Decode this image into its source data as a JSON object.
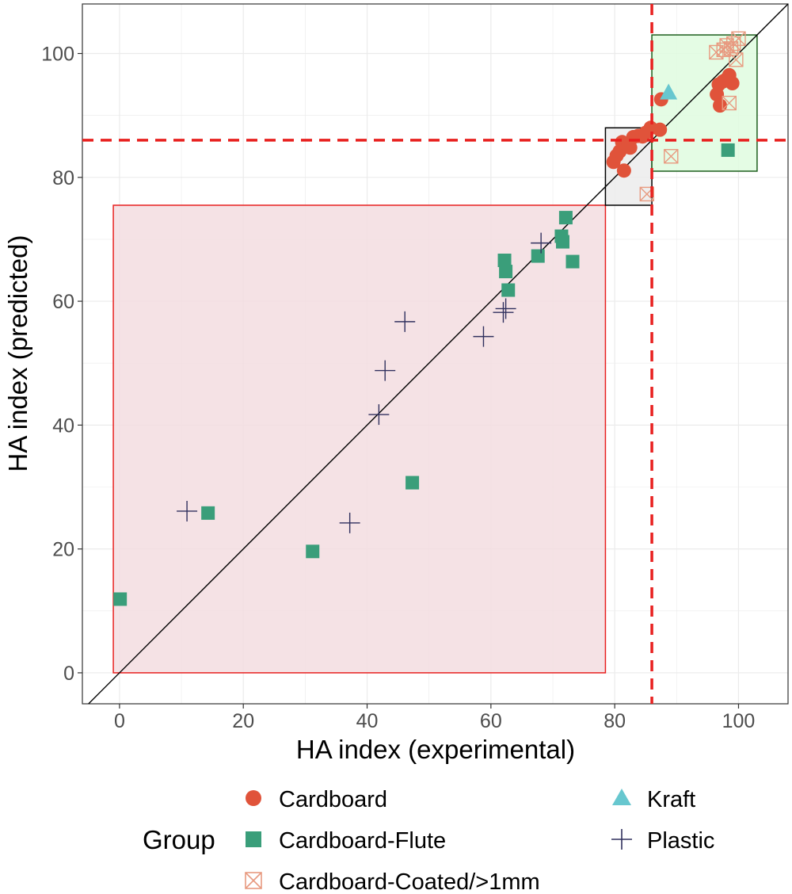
{
  "chart_data": {
    "type": "scatter",
    "title": "",
    "xlabel": "HA index (experimental)",
    "ylabel": "HA index (predicted)",
    "xlim": [
      -6,
      108
    ],
    "ylim": [
      -5,
      108
    ],
    "x_ticks": [
      0,
      20,
      40,
      60,
      80,
      100
    ],
    "y_ticks": [
      0,
      20,
      40,
      60,
      80,
      100
    ],
    "x_tick_labels": [
      "0",
      "20",
      "40",
      "60",
      "80",
      "100"
    ],
    "y_tick_labels": [
      "0",
      "20",
      "40",
      "60",
      "80",
      "100"
    ],
    "grid": true,
    "reference_line": {
      "slope": 1,
      "intercept": 0,
      "color": "#000000"
    },
    "threshold_lines": {
      "x": 86,
      "y": 86,
      "color": "#e8201f",
      "style": "dashed"
    },
    "regions": [
      {
        "x": [
          -1,
          78.5
        ],
        "y": [
          0,
          75.5
        ],
        "fill": "#f3dde1",
        "stroke": "#e8201f"
      },
      {
        "x": [
          78.5,
          86
        ],
        "y": [
          75.5,
          88
        ],
        "fill": "#ececec",
        "stroke": "#000000"
      },
      {
        "x": [
          86,
          103
        ],
        "y": [
          81,
          103
        ],
        "fill": "#dffbdf",
        "stroke": "#1d5e1d"
      }
    ],
    "legend_title": "Group",
    "legend_position": "bottom",
    "series": [
      {
        "name": "Cardboard",
        "marker": "circle",
        "color": "#e0533a",
        "points": [
          [
            79.8,
            82.5
          ],
          [
            80.3,
            83.5
          ],
          [
            80.8,
            84.2
          ],
          [
            81.2,
            85.7
          ],
          [
            81.5,
            81.1
          ],
          [
            82.2,
            85.2
          ],
          [
            82.5,
            84.8
          ],
          [
            83.0,
            86.5
          ],
          [
            83.8,
            86.7
          ],
          [
            84.5,
            86.6
          ],
          [
            85.0,
            87.2
          ],
          [
            85.8,
            88.0
          ],
          [
            87.3,
            87.7
          ],
          [
            87.5,
            92.6
          ],
          [
            96.5,
            93.4
          ],
          [
            96.8,
            95.0
          ],
          [
            97.0,
            91.6
          ],
          [
            97.5,
            95.5
          ],
          [
            98.0,
            95.8
          ],
          [
            98.5,
            96.5
          ],
          [
            99.0,
            95.2
          ]
        ]
      },
      {
        "name": "Cardboard-Flute",
        "marker": "square",
        "color": "#3a9e7a",
        "points": [
          [
            0.1,
            11.9
          ],
          [
            14.3,
            25.8
          ],
          [
            31.2,
            19.6
          ],
          [
            47.3,
            30.7
          ],
          [
            62.2,
            66.6
          ],
          [
            62.4,
            64.8
          ],
          [
            62.8,
            61.8
          ],
          [
            67.6,
            67.3
          ],
          [
            71.4,
            70.5
          ],
          [
            71.6,
            69.6
          ],
          [
            72.1,
            73.5
          ],
          [
            73.2,
            66.4
          ],
          [
            98.3,
            84.4
          ]
        ]
      },
      {
        "name": "Cardboard-Coated/>1mm",
        "marker": "boxed-x",
        "color": "#e89a80",
        "points": [
          [
            85.2,
            77.3
          ],
          [
            89.1,
            83.4
          ],
          [
            96.4,
            100.2
          ],
          [
            97.6,
            100.6
          ],
          [
            98.1,
            101.3
          ],
          [
            98.5,
            92.0
          ],
          [
            98.8,
            100.8
          ],
          [
            99.2,
            101.6
          ],
          [
            99.6,
            99.0
          ],
          [
            100.0,
            102.4
          ]
        ]
      },
      {
        "name": "Kraft",
        "marker": "triangle",
        "color": "#67c7cf",
        "points": [
          [
            88.7,
            93.6
          ]
        ]
      },
      {
        "name": "Plastic",
        "marker": "plus",
        "color": "#30305e",
        "points": [
          [
            10.9,
            26.1
          ],
          [
            37.2,
            24.2
          ],
          [
            41.9,
            41.7
          ],
          [
            42.9,
            48.8
          ],
          [
            46.1,
            56.7
          ],
          [
            58.8,
            54.3
          ],
          [
            62.0,
            58.2
          ],
          [
            62.4,
            58.8
          ],
          [
            68.1,
            69.4
          ]
        ]
      }
    ]
  }
}
